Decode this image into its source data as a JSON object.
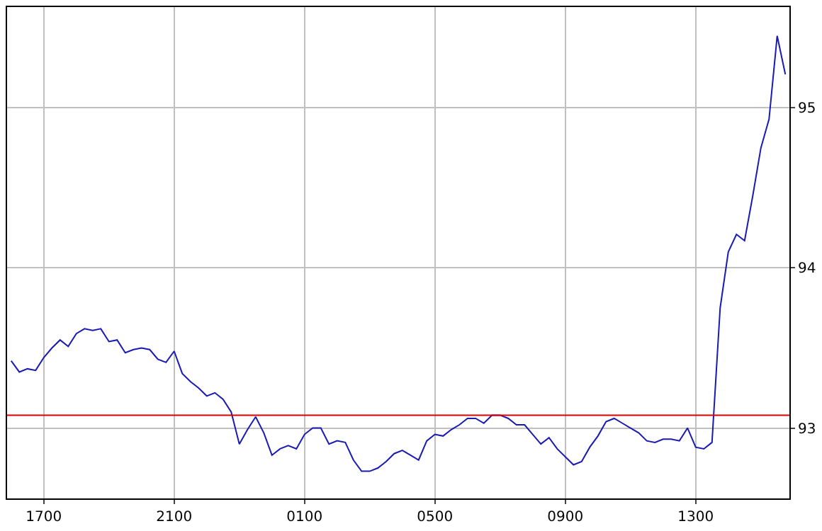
{
  "chart_data": {
    "type": "line",
    "categories": [
      null,
      null,
      null,
      null,
      "1700",
      null,
      null,
      null,
      null,
      null,
      null,
      null,
      null,
      null,
      null,
      null,
      null,
      null,
      null,
      null,
      "2100",
      null,
      null,
      null,
      null,
      null,
      null,
      null,
      null,
      null,
      null,
      null,
      null,
      null,
      null,
      null,
      "0100",
      null,
      null,
      null,
      null,
      null,
      null,
      null,
      null,
      null,
      null,
      null,
      null,
      null,
      null,
      null,
      "0500",
      null,
      null,
      null,
      null,
      null,
      null,
      null,
      null,
      null,
      null,
      null,
      null,
      null,
      null,
      null,
      "0900",
      null,
      null,
      null,
      null,
      null,
      null,
      null,
      null,
      null,
      null,
      null,
      null,
      null,
      null,
      null,
      "1300",
      null,
      null,
      null,
      null,
      null,
      null,
      null,
      null,
      null,
      null,
      null
    ],
    "series": [
      {
        "color": "#1a1ab4",
        "values": [
          93.42,
          93.35,
          93.37,
          93.36,
          93.44,
          93.5,
          93.55,
          93.51,
          93.59,
          93.62,
          93.61,
          93.62,
          93.54,
          93.55,
          93.47,
          93.49,
          93.5,
          93.49,
          93.43,
          93.41,
          93.48,
          93.34,
          93.29,
          93.25,
          93.2,
          93.22,
          93.18,
          93.1,
          92.9,
          92.99,
          93.07,
          92.97,
          92.83,
          92.87,
          92.89,
          92.87,
          92.96,
          93.0,
          93.0,
          92.9,
          92.92,
          92.91,
          92.8,
          92.73,
          92.73,
          92.75,
          92.79,
          92.84,
          92.86,
          92.83,
          92.8,
          92.92,
          92.96,
          92.95,
          92.99,
          93.02,
          93.06,
          93.06,
          93.03,
          93.08,
          93.08,
          93.06,
          93.02,
          93.02,
          92.96,
          92.9,
          92.94,
          92.87,
          92.82,
          92.77,
          92.79,
          92.88,
          92.95,
          93.04,
          93.06,
          93.03,
          93.0,
          92.97,
          92.92,
          92.91,
          92.93,
          92.93,
          92.92,
          93.0,
          92.88,
          92.87,
          92.91,
          93.75,
          94.1,
          94.21,
          94.17,
          94.45,
          94.75,
          94.93,
          95.45,
          95.21
        ]
      }
    ],
    "ylim": [
      92.56,
      95.63
    ],
    "yticks": [
      93,
      94,
      95
    ],
    "ref_lines": [
      {
        "axis": "y",
        "value": 93.08,
        "color": "#dd0000"
      }
    ],
    "grid": true,
    "legend": false,
    "marker": "none",
    "line_style": "solid"
  }
}
